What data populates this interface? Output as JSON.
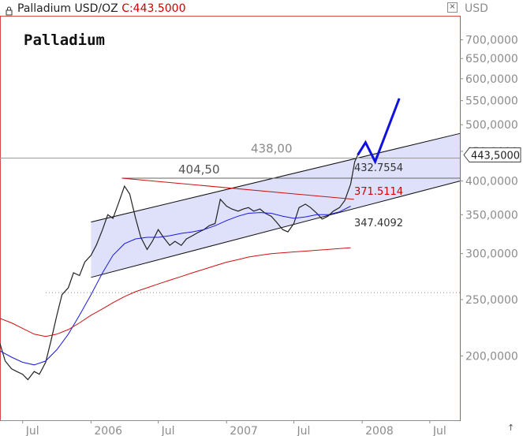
{
  "header": {
    "instrument": "Palladium USD/OZ",
    "close_label": "C:443.5000",
    "currency": "USD"
  },
  "colors": {
    "price": "#222222",
    "ma_blue": "#1a1adc",
    "ma_red": "#cc1111",
    "channel_fill": "#dfe1fa",
    "frame_red": "#d14b4b",
    "projection": "#1212dd",
    "accent_red": "#cc0000"
  },
  "chart_data": {
    "type": "line",
    "title": "Palladium",
    "y_scale": "log",
    "ylim": [
      155,
      770
    ],
    "y_ticks": [
      {
        "value": 700,
        "label": "700,0000"
      },
      {
        "value": 650,
        "label": "650,0000"
      },
      {
        "value": 600,
        "label": "600,0000"
      },
      {
        "value": 550,
        "label": "550,0000"
      },
      {
        "value": 500,
        "label": "500,0000"
      },
      {
        "value": 450,
        "label": "450,0000"
      },
      {
        "value": 400,
        "label": "400,0000"
      },
      {
        "value": 350,
        "label": "350,0000"
      },
      {
        "value": 300,
        "label": "300,0000"
      },
      {
        "value": 250,
        "label": "250,0000"
      },
      {
        "value": 200,
        "label": "200,0000"
      }
    ],
    "x_range": [
      "2005-05-01",
      "2008-09-20"
    ],
    "x_ticks": [
      {
        "date": "2005-07-01",
        "label": "Jul"
      },
      {
        "date": "2006-01-01",
        "label": "2006"
      },
      {
        "date": "2006-07-01",
        "label": "Jul"
      },
      {
        "date": "2007-01-01",
        "label": "2007"
      },
      {
        "date": "2007-07-01",
        "label": "Jul"
      },
      {
        "date": "2008-01-01",
        "label": "2008"
      },
      {
        "date": "2008-07-01",
        "label": "Jul"
      }
    ],
    "grid": false,
    "series": [
      {
        "kind": "price",
        "points": [
          [
            "2005-05-01",
            210
          ],
          [
            "2005-05-15",
            196
          ],
          [
            "2005-06-01",
            190
          ],
          [
            "2005-06-15",
            188
          ],
          [
            "2005-07-01",
            186
          ],
          [
            "2005-07-15",
            182
          ],
          [
            "2005-08-01",
            188
          ],
          [
            "2005-08-15",
            186
          ],
          [
            "2005-09-01",
            195
          ],
          [
            "2005-09-15",
            212
          ],
          [
            "2005-10-01",
            235
          ],
          [
            "2005-10-15",
            255
          ],
          [
            "2005-11-01",
            262
          ],
          [
            "2005-11-15",
            278
          ],
          [
            "2005-12-01",
            275
          ],
          [
            "2005-12-15",
            290
          ],
          [
            "2006-01-01",
            298
          ],
          [
            "2006-01-15",
            310
          ],
          [
            "2006-02-01",
            330
          ],
          [
            "2006-02-15",
            350
          ],
          [
            "2006-03-01",
            345
          ],
          [
            "2006-03-15",
            365
          ],
          [
            "2006-04-01",
            392
          ],
          [
            "2006-04-15",
            380
          ],
          [
            "2006-05-01",
            345
          ],
          [
            "2006-05-15",
            320
          ],
          [
            "2006-06-01",
            305
          ],
          [
            "2006-06-15",
            315
          ],
          [
            "2006-07-01",
            330
          ],
          [
            "2006-07-15",
            320
          ],
          [
            "2006-08-01",
            310
          ],
          [
            "2006-08-15",
            315
          ],
          [
            "2006-09-01",
            310
          ],
          [
            "2006-09-15",
            318
          ],
          [
            "2006-10-01",
            322
          ],
          [
            "2006-10-15",
            326
          ],
          [
            "2006-11-01",
            330
          ],
          [
            "2006-11-15",
            335
          ],
          [
            "2006-12-01",
            338
          ],
          [
            "2006-12-15",
            372
          ],
          [
            "2007-01-01",
            362
          ],
          [
            "2007-01-15",
            358
          ],
          [
            "2007-02-01",
            355
          ],
          [
            "2007-02-15",
            358
          ],
          [
            "2007-03-01",
            360
          ],
          [
            "2007-03-15",
            355
          ],
          [
            "2007-04-01",
            358
          ],
          [
            "2007-04-15",
            352
          ],
          [
            "2007-05-01",
            348
          ],
          [
            "2007-05-15",
            340
          ],
          [
            "2007-06-01",
            330
          ],
          [
            "2007-06-15",
            327
          ],
          [
            "2007-07-01",
            338
          ],
          [
            "2007-07-15",
            360
          ],
          [
            "2007-08-01",
            365
          ],
          [
            "2007-08-15",
            360
          ],
          [
            "2007-09-01",
            352
          ],
          [
            "2007-09-15",
            344
          ],
          [
            "2007-10-01",
            348
          ],
          [
            "2007-10-15",
            355
          ],
          [
            "2007-11-01",
            360
          ],
          [
            "2007-11-15",
            370
          ],
          [
            "2007-12-01",
            395
          ],
          [
            "2007-12-12",
            432
          ],
          [
            "2007-12-20",
            443.5
          ]
        ]
      },
      {
        "kind": "ma_blue",
        "points": [
          [
            "2005-05-01",
            204
          ],
          [
            "2005-06-01",
            199
          ],
          [
            "2005-07-01",
            195
          ],
          [
            "2005-08-01",
            193
          ],
          [
            "2005-09-01",
            196
          ],
          [
            "2005-10-01",
            205
          ],
          [
            "2005-11-01",
            218
          ],
          [
            "2005-12-01",
            235
          ],
          [
            "2006-01-01",
            255
          ],
          [
            "2006-02-01",
            278
          ],
          [
            "2006-03-01",
            298
          ],
          [
            "2006-04-01",
            312
          ],
          [
            "2006-05-01",
            318
          ],
          [
            "2006-06-01",
            320
          ],
          [
            "2006-07-01",
            320
          ],
          [
            "2006-08-01",
            322
          ],
          [
            "2006-09-01",
            325
          ],
          [
            "2006-10-01",
            327
          ],
          [
            "2006-11-01",
            330
          ],
          [
            "2006-12-01",
            335
          ],
          [
            "2007-01-01",
            342
          ],
          [
            "2007-02-01",
            348
          ],
          [
            "2007-03-01",
            352
          ],
          [
            "2007-04-01",
            353
          ],
          [
            "2007-05-01",
            352
          ],
          [
            "2007-06-01",
            348
          ],
          [
            "2007-07-01",
            345
          ],
          [
            "2007-08-01",
            347
          ],
          [
            "2007-09-01",
            350
          ],
          [
            "2007-10-01",
            350
          ],
          [
            "2007-11-01",
            354
          ],
          [
            "2007-12-01",
            362
          ]
        ]
      },
      {
        "kind": "ma_red",
        "points": [
          [
            "2005-05-01",
            232
          ],
          [
            "2005-06-01",
            228
          ],
          [
            "2005-07-01",
            223
          ],
          [
            "2005-08-01",
            218
          ],
          [
            "2005-09-01",
            216
          ],
          [
            "2005-10-01",
            218
          ],
          [
            "2005-11-01",
            222
          ],
          [
            "2005-12-01",
            228
          ],
          [
            "2006-01-01",
            235
          ],
          [
            "2006-02-01",
            241
          ],
          [
            "2006-03-01",
            247
          ],
          [
            "2006-04-01",
            253
          ],
          [
            "2006-05-01",
            258
          ],
          [
            "2006-06-01",
            262
          ],
          [
            "2006-07-01",
            266
          ],
          [
            "2006-08-01",
            270
          ],
          [
            "2006-09-01",
            274
          ],
          [
            "2006-10-01",
            278
          ],
          [
            "2006-11-01",
            282
          ],
          [
            "2006-12-01",
            286
          ],
          [
            "2007-01-01",
            290
          ],
          [
            "2007-02-01",
            293
          ],
          [
            "2007-03-01",
            296
          ],
          [
            "2007-04-01",
            298
          ],
          [
            "2007-05-01",
            300
          ],
          [
            "2007-06-01",
            301
          ],
          [
            "2007-07-01",
            302
          ],
          [
            "2007-08-01",
            303
          ],
          [
            "2007-09-01",
            304
          ],
          [
            "2007-10-01",
            305
          ],
          [
            "2007-11-01",
            306
          ],
          [
            "2007-12-01",
            307
          ]
        ]
      }
    ],
    "channel": {
      "upper": [
        [
          "2006-01-01",
          340
        ],
        [
          "2008-09-20",
          483
        ]
      ],
      "lower": [
        [
          "2006-01-01",
          273
        ],
        [
          "2008-09-20",
          400
        ]
      ]
    },
    "horizontal_lines": [
      {
        "value": 438.0,
        "label": "438,00"
      },
      {
        "value": 404.5,
        "label": "404,50"
      }
    ],
    "dotted_line": {
      "value": 257
    },
    "red_trendline": [
      [
        "2006-03-25",
        404.5
      ],
      [
        "2007-12-10",
        372
      ]
    ],
    "projection": [
      [
        "2007-12-20",
        443.5
      ],
      [
        "2008-01-10",
        466
      ],
      [
        "2008-02-05",
        432
      ],
      [
        "2008-04-10",
        555
      ]
    ],
    "annotations": [
      {
        "text": "432.7554",
        "kind": "dark"
      },
      {
        "text": "371.5114",
        "kind": "red"
      },
      {
        "text": "347.4092",
        "kind": "dark"
      }
    ],
    "last_price_tag": "443,5000"
  }
}
